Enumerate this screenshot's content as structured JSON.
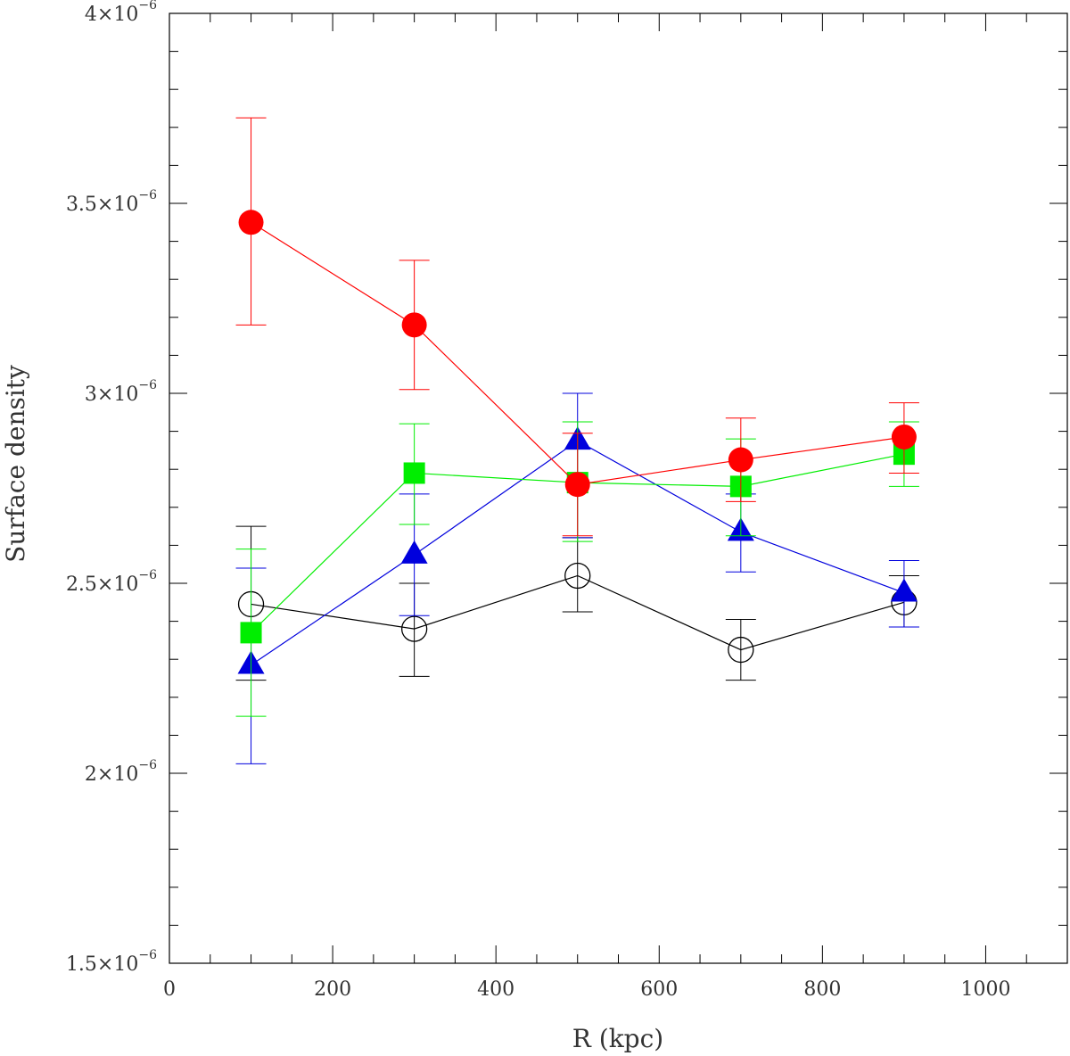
{
  "chart_data": {
    "type": "scatter",
    "title": "",
    "xlabel": "R (kpc)",
    "ylabel": "Surface density",
    "xlim": [
      0,
      1100
    ],
    "ylim": [
      1.5e-06,
      4e-06
    ],
    "x_ticks": [
      0,
      200,
      400,
      600,
      800,
      1000
    ],
    "x_tick_labels": [
      "0",
      "200",
      "400",
      "600",
      "800",
      "1000"
    ],
    "y_ticks": [
      1.5e-06,
      2e-06,
      2.5e-06,
      3e-06,
      3.5e-06,
      4e-06
    ],
    "y_tick_labels": [
      {
        "base": "1.5×10",
        "exp": "−6"
      },
      {
        "base": "2×10",
        "exp": "−6"
      },
      {
        "base": "2.5×10",
        "exp": "−6"
      },
      {
        "base": "3×10",
        "exp": "−6"
      },
      {
        "base": "3.5×10",
        "exp": "−6"
      },
      {
        "base": "4×10",
        "exp": "−6"
      }
    ],
    "x": [
      100,
      300,
      500,
      700,
      900
    ],
    "series": [
      {
        "name": "red-circles",
        "color": "#ff0000",
        "marker": "filled-circle",
        "values": [
          3.45e-06,
          3.18e-06,
          2.76e-06,
          2.825e-06,
          2.885e-06
        ],
        "err_low": [
          3.18e-06,
          3.01e-06,
          2.625e-06,
          2.715e-06,
          2.79e-06
        ],
        "err_high": [
          3.725e-06,
          3.35e-06,
          2.895e-06,
          2.935e-06,
          2.975e-06
        ]
      },
      {
        "name": "green-squares",
        "color": "#00ee00",
        "marker": "filled-square",
        "values": [
          2.37e-06,
          2.79e-06,
          2.765e-06,
          2.755e-06,
          2.84e-06
        ],
        "err_low": [
          2.15e-06,
          2.655e-06,
          2.61e-06,
          2.625e-06,
          2.755e-06
        ],
        "err_high": [
          2.59e-06,
          2.92e-06,
          2.925e-06,
          2.88e-06,
          2.925e-06
        ]
      },
      {
        "name": "blue-triangles",
        "color": "#0000dd",
        "marker": "filled-triangle",
        "values": [
          2.285e-06,
          2.575e-06,
          2.875e-06,
          2.635e-06,
          2.475e-06
        ],
        "err_low": [
          2.025e-06,
          2.415e-06,
          2.62e-06,
          2.53e-06,
          2.385e-06
        ],
        "err_high": [
          2.54e-06,
          2.735e-06,
          3e-06,
          2.735e-06,
          2.56e-06
        ]
      },
      {
        "name": "black-open-circles",
        "color": "#000000",
        "marker": "open-circle",
        "values": [
          2.445e-06,
          2.38e-06,
          2.52e-06,
          2.325e-06,
          2.45e-06
        ],
        "err_low": [
          2.245e-06,
          2.255e-06,
          2.425e-06,
          2.245e-06,
          2.385e-06
        ],
        "err_high": [
          2.65e-06,
          2.5e-06,
          2.62e-06,
          2.405e-06,
          2.52e-06
        ]
      }
    ]
  }
}
